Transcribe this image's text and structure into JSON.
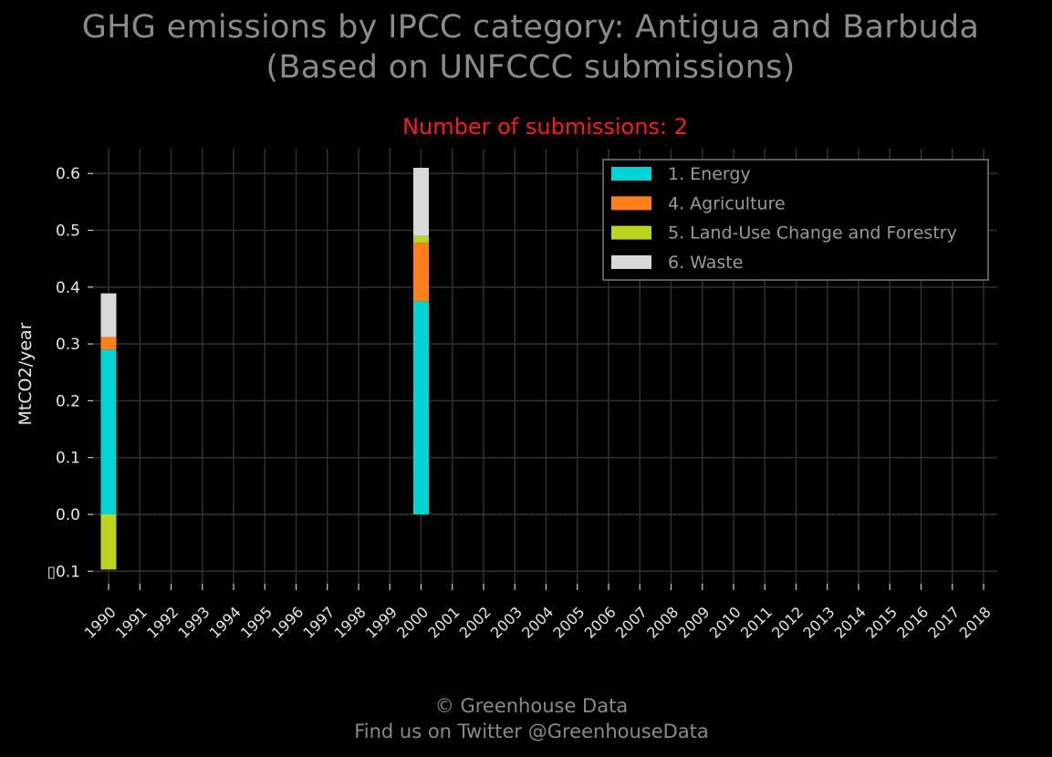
{
  "header": {
    "title_line1": "GHG emissions by IPCC category: Antigua and Barbuda",
    "title_line2": "(Based on UNFCCC submissions)",
    "subtitle": "Number of submissions: 2"
  },
  "footer": {
    "line1": "© Greenhouse Data",
    "line2": "Find us on Twitter @GreenhouseData"
  },
  "chart_data": {
    "type": "bar",
    "stacked": true,
    "title": "GHG emissions by IPCC category: Antigua and Barbuda (Based on UNFCCC submissions)",
    "subtitle": "Number of submissions: 2",
    "xlabel": "",
    "ylabel": "MtCO2/year",
    "categories": [
      "1990",
      "1991",
      "1992",
      "1993",
      "1994",
      "1995",
      "1996",
      "1997",
      "1998",
      "1999",
      "2000",
      "2001",
      "2002",
      "2003",
      "2004",
      "2005",
      "2006",
      "2007",
      "2008",
      "2009",
      "2010",
      "2011",
      "2012",
      "2013",
      "2014",
      "2015",
      "2016",
      "2017",
      "2018"
    ],
    "series": [
      {
        "name": "1. Energy",
        "color": "#00d4d4",
        "values": [
          0.29,
          0,
          0,
          0,
          0,
          0,
          0,
          0,
          0,
          0,
          0.375,
          0,
          0,
          0,
          0,
          0,
          0,
          0,
          0,
          0,
          0,
          0,
          0,
          0,
          0,
          0,
          0,
          0,
          0
        ]
      },
      {
        "name": "4. Agriculture",
        "color": "#ff7f1a",
        "values": [
          0.022,
          0,
          0,
          0,
          0,
          0,
          0,
          0,
          0,
          0,
          0.103,
          0,
          0,
          0,
          0,
          0,
          0,
          0,
          0,
          0,
          0,
          0,
          0,
          0,
          0,
          0,
          0,
          0,
          0
        ]
      },
      {
        "name": "5. Land-Use Change and Forestry",
        "color": "#bcd41e",
        "values": [
          -0.097,
          0,
          0,
          0,
          0,
          0,
          0,
          0,
          0,
          0,
          0.012,
          0,
          0,
          0,
          0,
          0,
          0,
          0,
          0,
          0,
          0,
          0,
          0,
          0,
          0,
          0,
          0,
          0,
          0
        ]
      },
      {
        "name": "6. Waste",
        "color": "#d9d9d9",
        "values": [
          0.077,
          0,
          0,
          0,
          0,
          0,
          0,
          0,
          0,
          0,
          0.12,
          0,
          0,
          0,
          0,
          0,
          0,
          0,
          0,
          0,
          0,
          0,
          0,
          0,
          0,
          0,
          0,
          0,
          0
        ]
      }
    ],
    "yticks": [
      -0.1,
      0.0,
      0.1,
      0.2,
      0.3,
      0.4,
      0.5,
      0.6
    ],
    "ytick_labels": [
      "▯0.1",
      "0.0",
      "0.1",
      "0.2",
      "0.3",
      "0.4",
      "0.5",
      "0.6"
    ],
    "ylim": [
      -0.12,
      0.645
    ],
    "grid": true,
    "legend_position": "top-right",
    "colors": {
      "background": "#000000",
      "grid": "#2e2e2e",
      "tick_text": "#e6e6e6",
      "legend_text": "#9a9a9a",
      "legend_border": "#7a7a7a",
      "title": "#8a8a8a",
      "subtitle": "#ff1a1a"
    }
  }
}
